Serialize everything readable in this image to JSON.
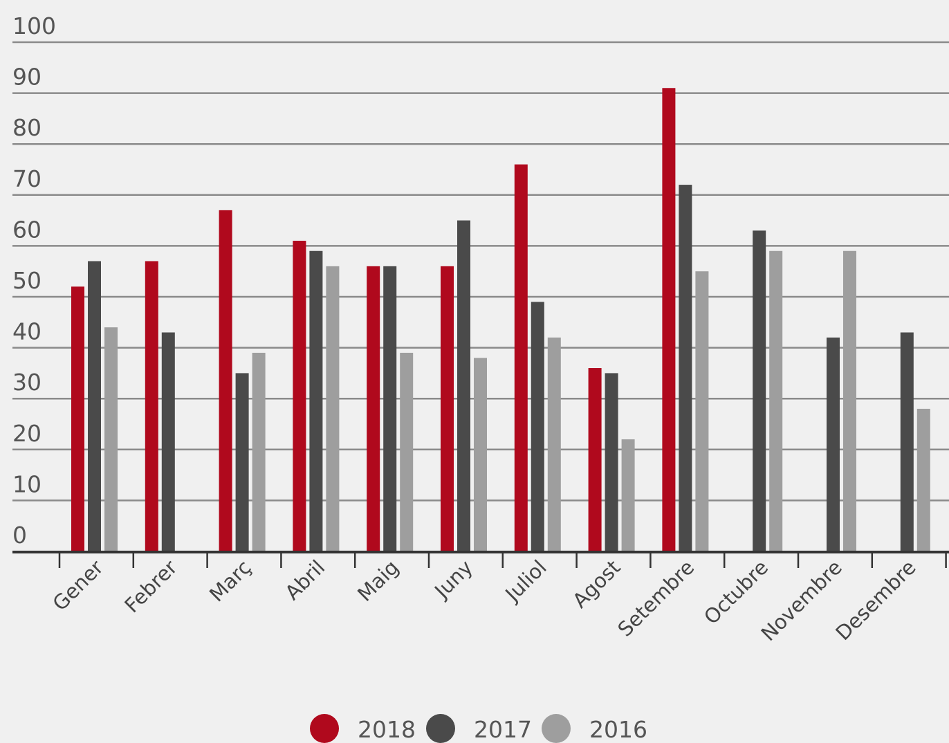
{
  "chart_data": {
    "type": "bar",
    "categories": [
      "Gener",
      "Febrer",
      "Març",
      "Abril",
      "Maig",
      "Juny",
      "Juliol",
      "Agost",
      "Setembre",
      "Octubre",
      "Novembre",
      "Desembre"
    ],
    "series": [
      {
        "name": "2018",
        "color": "#b0091d",
        "values": [
          52,
          57,
          67,
          61,
          56,
          56,
          76,
          36,
          91,
          null,
          null,
          null
        ]
      },
      {
        "name": "2017",
        "color": "#4a4a4a",
        "values": [
          57,
          43,
          35,
          59,
          56,
          65,
          49,
          35,
          72,
          63,
          42,
          43
        ]
      },
      {
        "name": "2016",
        "color": "#9e9e9e",
        "values": [
          44,
          null,
          39,
          56,
          39,
          38,
          42,
          22,
          55,
          59,
          59,
          28
        ]
      }
    ],
    "title": "",
    "xlabel": "",
    "ylabel": "",
    "ylim": [
      0,
      100
    ],
    "yticks": [
      "0",
      "10",
      "20",
      "30",
      "40",
      "50",
      "60",
      "70",
      "80",
      "90",
      "100"
    ],
    "grid": true,
    "legend_position": "bottom-center"
  }
}
